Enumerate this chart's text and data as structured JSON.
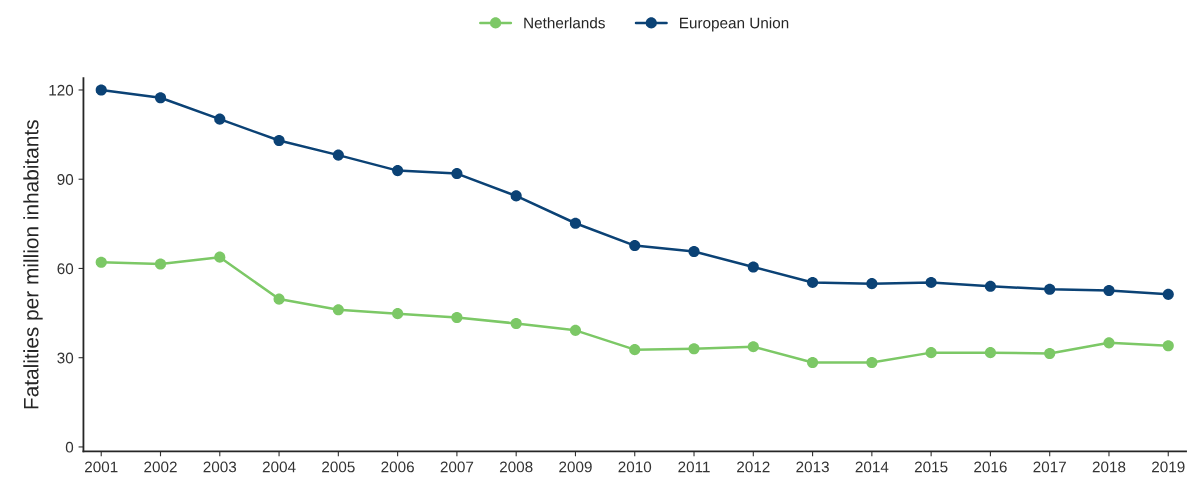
{
  "chart_data": {
    "type": "line",
    "ylabel": "Fatalities per million inhabitants",
    "categories": [
      "2001",
      "2002",
      "2003",
      "2004",
      "2005",
      "2006",
      "2007",
      "2008",
      "2009",
      "2010",
      "2011",
      "2012",
      "2013",
      "2014",
      "2015",
      "2016",
      "2017",
      "2018",
      "2019"
    ],
    "series": [
      {
        "name": "Netherlands",
        "color": "#7cc866",
        "values": [
          62.1,
          61.5,
          63.8,
          49.7,
          46.1,
          44.8,
          43.5,
          41.5,
          39.2,
          32.7,
          33,
          33.7,
          28.4,
          28.4,
          31.7,
          31.7,
          31.4,
          35,
          34
        ]
      },
      {
        "name": "European Union",
        "color": "#0b4275",
        "values": [
          120,
          117.4,
          110.2,
          103,
          98.1,
          92.9,
          91.9,
          84.4,
          75.2,
          67.7,
          65.7,
          60.5,
          55.3,
          54.9,
          55.3,
          54,
          53,
          52.6,
          51.3
        ]
      }
    ],
    "ylim": [
      -1.5,
      124
    ],
    "yticks": [
      0,
      30,
      60,
      90,
      120
    ],
    "grid": false,
    "legend": "top",
    "marker": "circle",
    "line_style": "solid"
  }
}
